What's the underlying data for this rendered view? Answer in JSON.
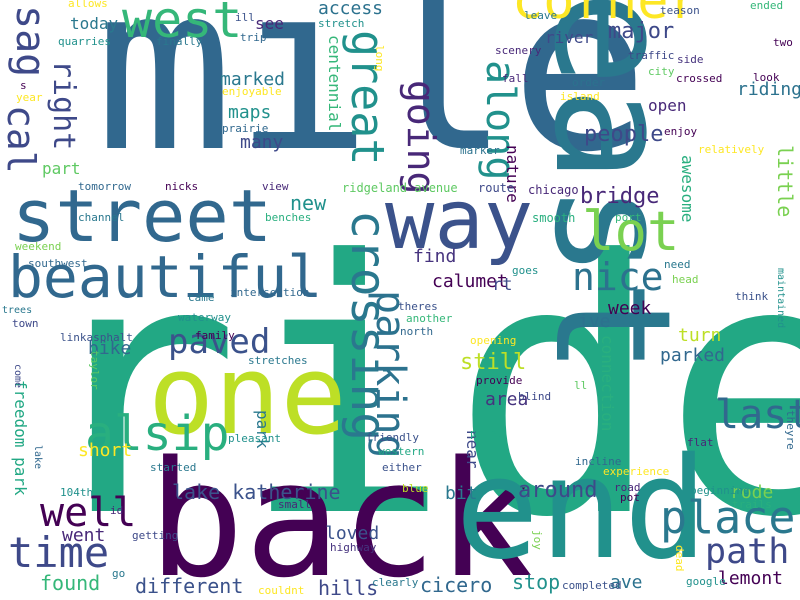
{
  "words": [
    {
      "text": "ride",
      "color": "#22a884"
    },
    {
      "text": "mile",
      "color": "#31688e"
    },
    {
      "text": "back",
      "color": "#440154"
    },
    {
      "text": "end",
      "color": "#21918c"
    },
    {
      "text": "east",
      "color": "#2a788e"
    },
    {
      "text": "one",
      "color": "#bddf26"
    },
    {
      "text": "way",
      "color": "#3b528b"
    },
    {
      "text": "street",
      "color": "#31688e"
    },
    {
      "text": "beautiful",
      "color": "#31688e"
    },
    {
      "text": "west",
      "color": "#35b779"
    },
    {
      "text": "corner",
      "color": "#fde725"
    },
    {
      "text": "alsip",
      "color": "#29af7f"
    },
    {
      "text": "crossing",
      "color": "#2a788e"
    },
    {
      "text": "lot",
      "color": "#7ad151"
    },
    {
      "text": "great",
      "color": "#21918c"
    },
    {
      "text": "along",
      "color": "#21918c"
    },
    {
      "text": "parking",
      "color": "#2c728e"
    },
    {
      "text": "going",
      "color": "#482878"
    },
    {
      "text": "right",
      "color": "#3e4989"
    },
    {
      "text": "cal",
      "color": "#3e4989"
    },
    {
      "text": "sag",
      "color": "#3e4989"
    },
    {
      "text": "place",
      "color": "#2a788e"
    },
    {
      "text": "path",
      "color": "#3e4989"
    },
    {
      "text": "time",
      "color": "#3e4989"
    },
    {
      "text": "well",
      "color": "#440154"
    },
    {
      "text": "last",
      "color": "#31688e"
    },
    {
      "text": "paved",
      "color": "#3b528b"
    },
    {
      "text": "nice",
      "color": "#2c728e"
    },
    {
      "text": "lake katherine",
      "color": "#3b528b"
    },
    {
      "text": "freedom park",
      "color": "#22a884"
    },
    {
      "text": "around",
      "color": "#3e4989"
    },
    {
      "text": "bridge",
      "color": "#482878"
    },
    {
      "text": "people",
      "color": "#3e4989"
    },
    {
      "text": "major",
      "color": "#3e4989"
    },
    {
      "text": "riding",
      "color": "#2c728e"
    },
    {
      "text": "little",
      "color": "#7ad151"
    },
    {
      "text": "awesome",
      "color": "#29af7f"
    },
    {
      "text": "open",
      "color": "#482878"
    },
    {
      "text": "maps",
      "color": "#21918c"
    },
    {
      "text": "marked",
      "color": "#2a788e"
    },
    {
      "text": "many",
      "color": "#3e4989"
    },
    {
      "text": "centennial",
      "color": "#35b779"
    },
    {
      "text": "access",
      "color": "#2c728e"
    },
    {
      "text": "today",
      "color": "#2a788e"
    },
    {
      "text": "see",
      "color": "#482878"
    },
    {
      "text": "river",
      "color": "#3e4989"
    },
    {
      "text": "nature",
      "color": "#440154"
    },
    {
      "text": "new",
      "color": "#21918c"
    },
    {
      "text": "find",
      "color": "#46337e"
    },
    {
      "text": "calumet",
      "color": "#440154"
    },
    {
      "text": "rt",
      "color": "#3e4989"
    },
    {
      "text": "bike",
      "color": "#31688e"
    },
    {
      "text": "still",
      "color": "#bddf26"
    },
    {
      "text": "area",
      "color": "#46337e"
    },
    {
      "text": "near",
      "color": "#3e4989"
    },
    {
      "text": "park",
      "color": "#2a788e"
    },
    {
      "text": "part",
      "color": "#5ec962"
    },
    {
      "text": "short",
      "color": "#fde725"
    },
    {
      "text": "turn",
      "color": "#bddf26"
    },
    {
      "text": "parked",
      "color": "#31688e"
    },
    {
      "text": "week",
      "color": "#440154"
    },
    {
      "text": "connection",
      "color": "#29af7f"
    },
    {
      "text": "ive",
      "color": "#2c728e"
    },
    {
      "text": "rode",
      "color": "#7ad151"
    },
    {
      "text": "lemont",
      "color": "#440154"
    },
    {
      "text": "bit",
      "color": "#2a788e"
    },
    {
      "text": "loved",
      "color": "#3b528b"
    },
    {
      "text": "went",
      "color": "#482878"
    },
    {
      "text": "found",
      "color": "#35b779"
    },
    {
      "text": "different",
      "color": "#3b528b"
    },
    {
      "text": "hills",
      "color": "#3e4989"
    },
    {
      "text": "cicero",
      "color": "#31688e"
    },
    {
      "text": "stop",
      "color": "#21918c"
    },
    {
      "text": "ave",
      "color": "#2c728e"
    },
    {
      "text": "ridgeland avenue",
      "color": "#5ec962"
    },
    {
      "text": "route",
      "color": "#3e4989"
    },
    {
      "text": "chicago",
      "color": "#482878"
    },
    {
      "text": "smooth",
      "color": "#29af7f"
    },
    {
      "text": "port",
      "color": "#35b779"
    },
    {
      "text": "channel",
      "color": "#2a788e"
    },
    {
      "text": "tomorrow",
      "color": "#31688e"
    },
    {
      "text": "nicks",
      "color": "#440154"
    },
    {
      "text": "view",
      "color": "#482878"
    },
    {
      "text": "benches",
      "color": "#29af7f"
    },
    {
      "text": "weekend",
      "color": "#7ad151"
    },
    {
      "text": "southwest",
      "color": "#31688e"
    },
    {
      "text": "trees",
      "color": "#2a788e"
    },
    {
      "text": "town",
      "color": "#3e4989"
    },
    {
      "text": "came",
      "color": "#2a788e"
    },
    {
      "text": "intersection",
      "color": "#31688e"
    },
    {
      "text": "waterway",
      "color": "#21918c"
    },
    {
      "text": "family",
      "color": "#440154"
    },
    {
      "text": "linkasphalt",
      "color": "#3b528b"
    },
    {
      "text": "stretches",
      "color": "#2a788e"
    },
    {
      "text": "taylor",
      "color": "#5ec962"
    },
    {
      "text": "pleasant",
      "color": "#21918c"
    },
    {
      "text": "started",
      "color": "#2a788e"
    },
    {
      "text": "friendly",
      "color": "#3b528b"
    },
    {
      "text": "western",
      "color": "#22a884"
    },
    {
      "text": "either",
      "color": "#3b528b"
    },
    {
      "text": "blue",
      "color": "#bddf26"
    },
    {
      "text": "small",
      "color": "#482878"
    },
    {
      "text": "104th",
      "color": "#21918c"
    },
    {
      "text": "id",
      "color": "#482878"
    },
    {
      "text": "getting",
      "color": "#3e4989"
    },
    {
      "text": "go",
      "color": "#2a788e"
    },
    {
      "text": "highway",
      "color": "#46337e"
    },
    {
      "text": "clearly",
      "color": "#2a788e"
    },
    {
      "text": "couldnt",
      "color": "#fde725"
    },
    {
      "text": "completed",
      "color": "#3b528b"
    },
    {
      "text": "joy",
      "color": "#7ad151"
    },
    {
      "text": "google",
      "color": "#21918c"
    },
    {
      "text": "dead",
      "color": "#fde725"
    },
    {
      "text": "trails",
      "color": "#29af7f"
    },
    {
      "text": "beginning",
      "color": "#21918c"
    },
    {
      "text": "road",
      "color": "#482878"
    },
    {
      "text": "pot",
      "color": "#440154"
    },
    {
      "text": "incline",
      "color": "#31688e"
    },
    {
      "text": "experience",
      "color": "#fde725"
    },
    {
      "text": "flat",
      "color": "#482878"
    },
    {
      "text": "theyre",
      "color": "#31688e"
    },
    {
      "text": "maintained",
      "color": "#21918c"
    },
    {
      "text": "think",
      "color": "#3b528b"
    },
    {
      "text": "head",
      "color": "#7ad151"
    },
    {
      "text": "need",
      "color": "#2a788e"
    },
    {
      "text": "relatively",
      "color": "#fde725"
    },
    {
      "text": "enjoy",
      "color": "#440154"
    },
    {
      "text": "marker",
      "color": "#2c728e"
    },
    {
      "text": "provide",
      "color": "#440154"
    },
    {
      "text": "blind",
      "color": "#3e4989"
    },
    {
      "text": "point",
      "color": "#22a884"
    },
    {
      "text": "opening",
      "color": "#fde725"
    },
    {
      "text": "theres",
      "color": "#3b528b"
    },
    {
      "text": "another",
      "color": "#35b779"
    },
    {
      "text": "north",
      "color": "#31688e"
    },
    {
      "text": "goes",
      "color": "#21918c"
    },
    {
      "text": "ll",
      "color": "#5ec962"
    },
    {
      "text": "lake",
      "color": "#31688e"
    },
    {
      "text": "come",
      "color": "#3e4989"
    },
    {
      "text": "allows",
      "color": "#fde725"
    },
    {
      "text": "quarries",
      "color": "#21918c"
    },
    {
      "text": "finally",
      "color": "#2a788e"
    },
    {
      "text": "ill",
      "color": "#3b528b"
    },
    {
      "text": "trip",
      "color": "#31688e"
    },
    {
      "text": "stretch",
      "color": "#21918c"
    },
    {
      "text": "long",
      "color": "#fde725"
    },
    {
      "text": "leave",
      "color": "#2a788e"
    },
    {
      "text": "scenery",
      "color": "#482878"
    },
    {
      "text": "teason",
      "color": "#3b528b"
    },
    {
      "text": "ended",
      "color": "#35b779"
    },
    {
      "text": "two",
      "color": "#440154"
    },
    {
      "text": "side",
      "color": "#46337e"
    },
    {
      "text": "traffic",
      "color": "#3e4989"
    },
    {
      "text": "city",
      "color": "#5ec962"
    },
    {
      "text": "crossed",
      "color": "#440154"
    },
    {
      "text": "look",
      "color": "#440154"
    },
    {
      "text": "order",
      "color": "#2c728e"
    },
    {
      "text": "island",
      "color": "#fde725"
    },
    {
      "text": "fall",
      "color": "#482878"
    },
    {
      "text": "enjoyable",
      "color": "#fde725"
    },
    {
      "text": "prairie",
      "color": "#31688e"
    },
    {
      "text": "year",
      "color": "#fde725"
    },
    {
      "text": "s",
      "color": "#440154"
    }
  ]
}
